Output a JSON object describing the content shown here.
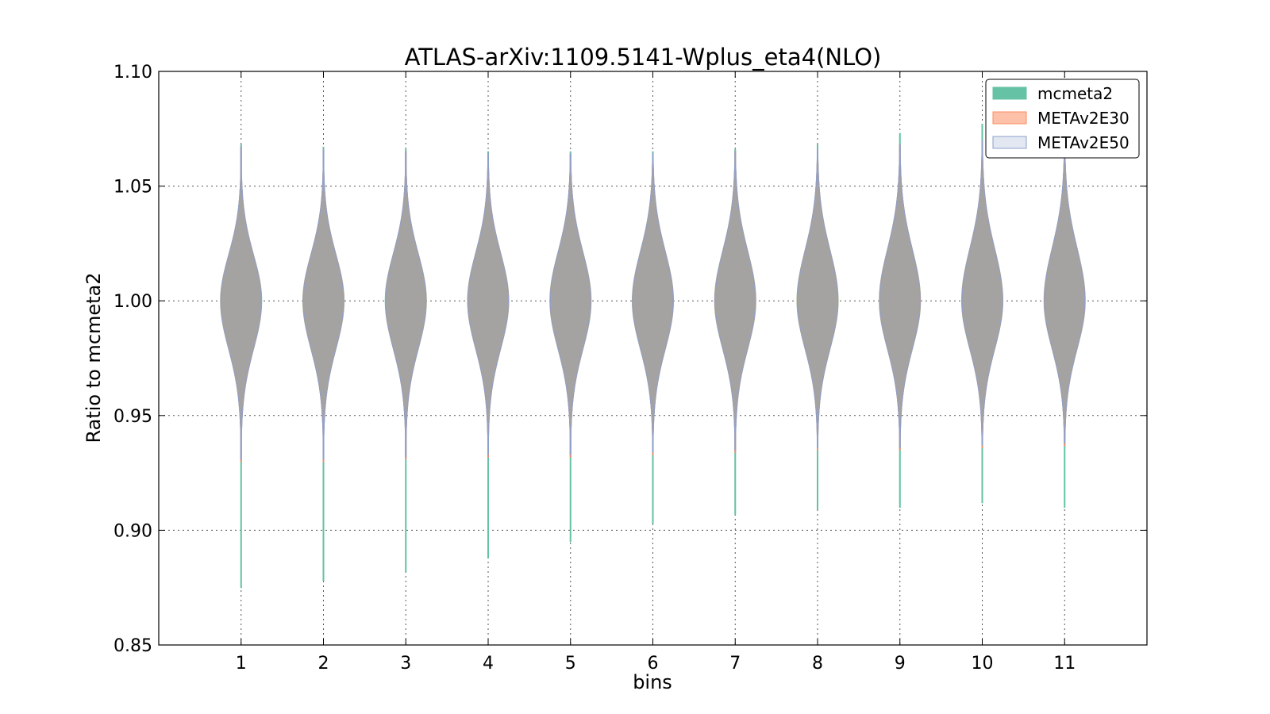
{
  "chart_data": {
    "type": "violin",
    "title": "ATLAS-arXiv:1109.5141-Wplus_eta4(NLO)",
    "xlabel": "bins",
    "ylabel": "Ratio to mcmeta2",
    "ylim": [
      0.85,
      1.1
    ],
    "xlim": [
      0,
      12
    ],
    "yticks": [
      "0.85",
      "0.90",
      "0.95",
      "1.00",
      "1.05",
      "1.10"
    ],
    "yticks_values": [
      0.85,
      0.9,
      0.95,
      1.0,
      1.05,
      1.1
    ],
    "categories": [
      "1",
      "2",
      "3",
      "4",
      "5",
      "6",
      "7",
      "8",
      "9",
      "10",
      "11"
    ],
    "grid": true,
    "legend_position": "top-right",
    "series": [
      {
        "name": "mcmeta2",
        "color": "#66c2a5",
        "edge": "#66c2a5",
        "min": [
          0.875,
          0.878,
          0.882,
          0.888,
          0.895,
          0.903,
          0.907,
          0.909,
          0.91,
          0.912,
          0.91
        ],
        "max": [
          1.068,
          1.067,
          1.066,
          1.065,
          1.065,
          1.065,
          1.066,
          1.068,
          1.073,
          1.077,
          1.079
        ]
      },
      {
        "name": "METAv2E30",
        "color": "#fc8d62",
        "edge": "#fc8d62",
        "min": [
          0.93,
          0.93,
          0.931,
          0.932,
          0.932,
          0.933,
          0.934,
          0.935,
          0.935,
          0.936,
          0.937
        ],
        "max": [
          1.067,
          1.066,
          1.065,
          1.064,
          1.064,
          1.064,
          1.065,
          1.066,
          1.068,
          1.07,
          1.071
        ]
      },
      {
        "name": "METAv2E50",
        "color": "#8da0cb",
        "edge": "#8da0cb",
        "min": [
          0.931,
          0.931,
          0.932,
          0.933,
          0.933,
          0.934,
          0.935,
          0.936,
          0.936,
          0.937,
          0.938
        ],
        "max": [
          1.067,
          1.066,
          1.065,
          1.064,
          1.064,
          1.064,
          1.065,
          1.066,
          1.068,
          1.07,
          1.071
        ]
      }
    ]
  }
}
